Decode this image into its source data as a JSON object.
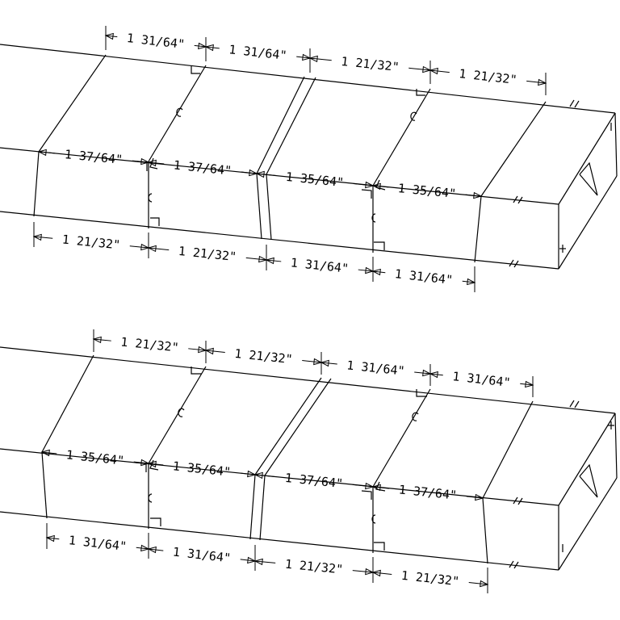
{
  "drawing": {
    "top_assembly": {
      "upper_dims": [
        "1 31/64\"",
        "1 31/64\"",
        "1 21/32\"",
        "1 21/32\""
      ],
      "middle_dims": [
        "1 37/64\"",
        "1 37/64\"",
        "1 35/64\"",
        "1 35/64\""
      ],
      "lower_dims": [
        "1 21/32\"",
        "1 21/32\"",
        "1 31/64\"",
        "1 31/64\""
      ]
    },
    "bottom_assembly": {
      "upper_dims": [
        "1 21/32\"",
        "1 21/32\"",
        "1 31/64\"",
        "1 31/64\""
      ],
      "middle_dims": [
        "1 35/64\"",
        "1 35/64\"",
        "1 37/64\"",
        "1 37/64\""
      ],
      "lower_dims": [
        "1 31/64\"",
        "1 31/64\"",
        "1 21/32\"",
        "1 21/32\""
      ]
    }
  }
}
